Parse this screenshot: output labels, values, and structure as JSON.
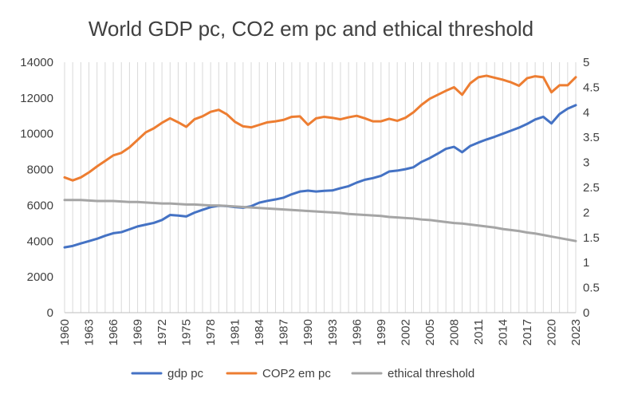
{
  "chart_data": {
    "type": "line",
    "title": "World GDP pc, CO2 em pc and ethical threshold",
    "xlabel": "",
    "ylabel": "",
    "y2label": "",
    "x": [
      1960,
      1961,
      1962,
      1963,
      1964,
      1965,
      1966,
      1967,
      1968,
      1969,
      1970,
      1971,
      1972,
      1973,
      1974,
      1975,
      1976,
      1977,
      1978,
      1979,
      1980,
      1981,
      1982,
      1983,
      1984,
      1985,
      1986,
      1987,
      1988,
      1989,
      1990,
      1991,
      1992,
      1993,
      1994,
      1995,
      1996,
      1997,
      1998,
      1999,
      2000,
      2001,
      2002,
      2003,
      2004,
      2005,
      2006,
      2007,
      2008,
      2009,
      2010,
      2011,
      2012,
      2013,
      2014,
      2015,
      2016,
      2017,
      2018,
      2019,
      2020,
      2021,
      2022,
      2023
    ],
    "x_tick_labels": [
      "1960",
      "1963",
      "1966",
      "1969",
      "1972",
      "1975",
      "1978",
      "1981",
      "1984",
      "1987",
      "1990",
      "1993",
      "1996",
      "1999",
      "2002",
      "2005",
      "2008",
      "2011",
      "2014",
      "2017",
      "2020",
      "2023"
    ],
    "ylim": [
      0,
      14000
    ],
    "y_ticks": [
      "0",
      "2000",
      "4000",
      "6000",
      "8000",
      "10000",
      "12000",
      "14000"
    ],
    "y2lim": [
      0,
      5
    ],
    "y2_ticks": [
      "0",
      "0.5",
      "1",
      "1.5",
      "2",
      "2.5",
      "3",
      "3.5",
      "4",
      "4.5",
      "5"
    ],
    "grid": "vertical",
    "legend_position": "bottom",
    "series": [
      {
        "name": "gdp pc",
        "axis": "left",
        "color": "#4472C4",
        "values": [
          3650,
          3730,
          3870,
          4000,
          4130,
          4300,
          4440,
          4500,
          4660,
          4820,
          4920,
          5020,
          5180,
          5460,
          5430,
          5380,
          5590,
          5750,
          5900,
          5980,
          5960,
          5900,
          5870,
          5950,
          6150,
          6250,
          6330,
          6430,
          6620,
          6770,
          6820,
          6770,
          6810,
          6830,
          6960,
          7070,
          7270,
          7430,
          7520,
          7650,
          7890,
          7940,
          8020,
          8130,
          8430,
          8640,
          8890,
          9160,
          9270,
          8970,
          9320,
          9510,
          9680,
          9830,
          10000,
          10170,
          10340,
          10550,
          10800,
          10950,
          10580,
          11100,
          11400,
          11600
        ]
      },
      {
        "name": "COP2 em pc",
        "axis": "right",
        "color": "#ED7D31",
        "values": [
          2.7,
          2.64,
          2.7,
          2.8,
          2.92,
          3.03,
          3.14,
          3.19,
          3.3,
          3.45,
          3.6,
          3.68,
          3.79,
          3.88,
          3.8,
          3.71,
          3.86,
          3.92,
          4.01,
          4.05,
          3.96,
          3.81,
          3.72,
          3.7,
          3.75,
          3.8,
          3.82,
          3.85,
          3.91,
          3.92,
          3.75,
          3.88,
          3.91,
          3.89,
          3.86,
          3.9,
          3.93,
          3.88,
          3.82,
          3.82,
          3.87,
          3.83,
          3.89,
          4.0,
          4.15,
          4.27,
          4.35,
          4.43,
          4.5,
          4.35,
          4.58,
          4.7,
          4.73,
          4.69,
          4.65,
          4.6,
          4.53,
          4.68,
          4.72,
          4.7,
          4.4,
          4.54,
          4.54,
          4.7
        ]
      },
      {
        "name": "ethical threshold",
        "axis": "right",
        "color": "#A5A5A5",
        "values": [
          2.25,
          2.25,
          2.25,
          2.24,
          2.23,
          2.23,
          2.23,
          2.22,
          2.21,
          2.21,
          2.2,
          2.19,
          2.18,
          2.18,
          2.17,
          2.16,
          2.16,
          2.15,
          2.14,
          2.14,
          2.13,
          2.12,
          2.11,
          2.1,
          2.09,
          2.08,
          2.07,
          2.06,
          2.05,
          2.04,
          2.03,
          2.02,
          2.01,
          2.0,
          1.99,
          1.97,
          1.96,
          1.95,
          1.94,
          1.93,
          1.91,
          1.9,
          1.89,
          1.88,
          1.86,
          1.85,
          1.83,
          1.81,
          1.79,
          1.78,
          1.76,
          1.74,
          1.72,
          1.7,
          1.67,
          1.65,
          1.63,
          1.6,
          1.58,
          1.55,
          1.52,
          1.49,
          1.46,
          1.43
        ]
      }
    ]
  },
  "colors": {
    "axis_text": "#404040",
    "gridline": "#D9D9D9",
    "axis_line": "#BFBFBF"
  }
}
